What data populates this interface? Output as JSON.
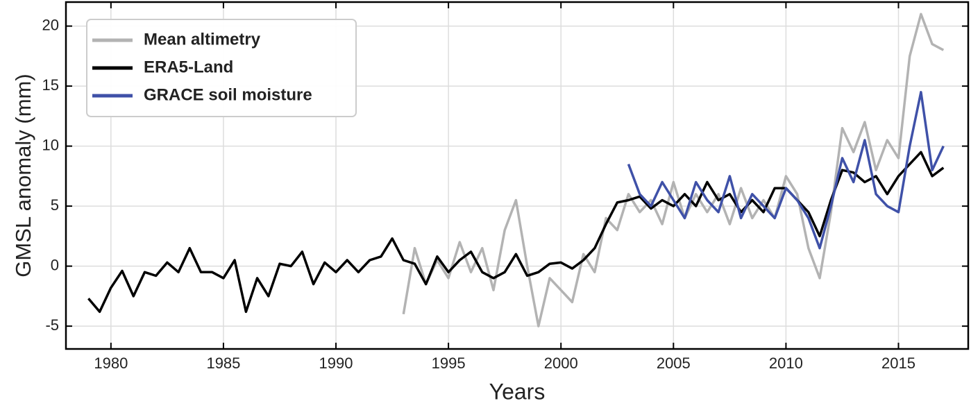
{
  "chart_data": {
    "type": "line",
    "xlabel": "Years",
    "ylabel": "GMSL anomaly (mm)",
    "xlim": [
      1978,
      2018.1
    ],
    "ylim": [
      -6.9,
      22
    ],
    "xticks": [
      1980,
      1985,
      1990,
      1995,
      2000,
      2005,
      2010,
      2015
    ],
    "yticks": [
      -5,
      0,
      5,
      10,
      15,
      20
    ],
    "grid": true,
    "legend": "upper left",
    "series": [
      {
        "name": "Mean altimetry",
        "color": "#b3b3b3",
        "x": [
          1993.0,
          1993.5,
          1994.0,
          1994.5,
          1995.0,
          1995.5,
          1996.0,
          1996.5,
          1997.0,
          1997.5,
          1998.0,
          1998.5,
          1999.0,
          1999.5,
          2000.0,
          2000.5,
          2001.0,
          2001.5,
          2002.0,
          2002.5,
          2003.0,
          2003.5,
          2004.0,
          2004.5,
          2005.0,
          2005.5,
          2006.0,
          2006.5,
          2007.0,
          2007.5,
          2008.0,
          2008.5,
          2009.0,
          2009.5,
          2010.0,
          2010.5,
          2011.0,
          2011.5,
          2012.0,
          2012.5,
          2013.0,
          2013.5,
          2014.0,
          2014.5,
          2015.0,
          2015.5,
          2016.0,
          2016.5,
          2017.0
        ],
        "values": [
          -4.0,
          1.5,
          -1.5,
          0.5,
          -1.0,
          2.0,
          -0.5,
          1.5,
          -2.0,
          3.0,
          5.5,
          0.0,
          -5.0,
          -1.0,
          -2.0,
          -3.0,
          1.0,
          -0.5,
          4.0,
          3.0,
          6.0,
          4.5,
          5.5,
          3.5,
          7.0,
          4.0,
          6.0,
          4.5,
          6.0,
          3.5,
          6.5,
          4.0,
          5.5,
          4.0,
          7.5,
          6.0,
          1.5,
          -1.0,
          4.5,
          11.5,
          9.5,
          12.0,
          8.0,
          10.5,
          9.0,
          17.5,
          21.0,
          18.5,
          18.0
        ]
      },
      {
        "name": "ERA5-Land",
        "color": "#000000",
        "x": [
          1979.0,
          1979.5,
          1980.0,
          1980.5,
          1981.0,
          1981.5,
          1982.0,
          1982.5,
          1983.0,
          1983.5,
          1984.0,
          1984.5,
          1985.0,
          1985.5,
          1986.0,
          1986.5,
          1987.0,
          1987.5,
          1988.0,
          1988.5,
          1989.0,
          1989.5,
          1990.0,
          1990.5,
          1991.0,
          1991.5,
          1992.0,
          1992.5,
          1993.0,
          1993.5,
          1994.0,
          1994.5,
          1995.0,
          1995.5,
          1996.0,
          1996.5,
          1997.0,
          1997.5,
          1998.0,
          1998.5,
          1999.0,
          1999.5,
          2000.0,
          2000.5,
          2001.0,
          2001.5,
          2002.0,
          2002.5,
          2003.0,
          2003.5,
          2004.0,
          2004.5,
          2005.0,
          2005.5,
          2006.0,
          2006.5,
          2007.0,
          2007.5,
          2008.0,
          2008.5,
          2009.0,
          2009.5,
          2010.0,
          2010.5,
          2011.0,
          2011.5,
          2012.0,
          2012.5,
          2013.0,
          2013.5,
          2014.0,
          2014.5,
          2015.0,
          2015.5,
          2016.0,
          2016.5,
          2017.0
        ],
        "values": [
          -2.7,
          -3.8,
          -1.8,
          -0.4,
          -2.5,
          -0.5,
          -0.8,
          0.3,
          -0.5,
          1.5,
          -0.5,
          -0.5,
          -1.0,
          0.5,
          -3.8,
          -1.0,
          -2.5,
          0.2,
          0.0,
          1.2,
          -1.5,
          0.3,
          -0.5,
          0.5,
          -0.5,
          0.5,
          0.8,
          2.3,
          0.5,
          0.2,
          -1.5,
          0.8,
          -0.5,
          0.5,
          1.2,
          -0.5,
          -1.0,
          -0.5,
          1.0,
          -0.8,
          -0.5,
          0.2,
          0.3,
          -0.2,
          0.5,
          1.5,
          3.5,
          5.3,
          5.5,
          5.8,
          4.8,
          5.5,
          5.0,
          6.0,
          5.0,
          7.0,
          5.5,
          6.0,
          4.5,
          5.5,
          4.5,
          6.5,
          6.5,
          5.5,
          4.5,
          2.5,
          5.5,
          8.0,
          7.8,
          7.0,
          7.5,
          6.0,
          7.5,
          8.5,
          9.5,
          7.5,
          8.2
        ]
      },
      {
        "name": "GRACE soil moisture",
        "color": "#3f51a8",
        "x": [
          2003.0,
          2003.5,
          2004.0,
          2004.5,
          2005.0,
          2005.5,
          2006.0,
          2006.5,
          2007.0,
          2007.5,
          2008.0,
          2008.5,
          2009.0,
          2009.5,
          2010.0,
          2010.5,
          2011.0,
          2011.5,
          2012.0,
          2012.5,
          2013.0,
          2013.5,
          2014.0,
          2014.5,
          2015.0,
          2015.5,
          2016.0,
          2016.5,
          2017.0
        ],
        "values": [
          8.5,
          6.0,
          5.0,
          7.0,
          5.5,
          4.0,
          7.0,
          5.5,
          4.5,
          7.5,
          4.0,
          6.0,
          5.0,
          4.0,
          6.5,
          5.5,
          4.0,
          1.5,
          5.0,
          9.0,
          7.0,
          10.5,
          6.0,
          5.0,
          4.5,
          10.0,
          14.5,
          8.0,
          10.0
        ]
      }
    ]
  }
}
